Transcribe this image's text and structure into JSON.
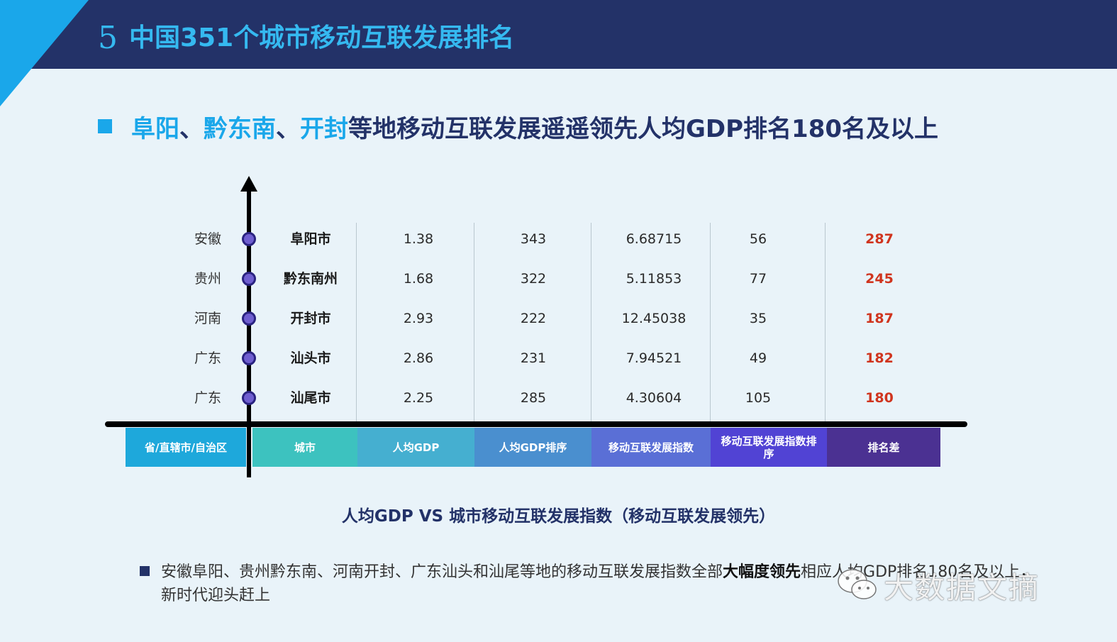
{
  "header": {
    "number": "5",
    "title": "中国351个城市移动互联发展排名"
  },
  "subtitle": {
    "highlights": [
      "阜阳",
      "黔东南",
      "开封"
    ],
    "separators": [
      "、",
      "、"
    ],
    "rest": "等地移动互联发展遥遥领先人均GDP排名180名及以上"
  },
  "table": {
    "columns": [
      "省/直辖市/自治区",
      "城市",
      "人均GDP",
      "人均GDP排序",
      "移动互联发展指数",
      "移动互联发展指数排序",
      "排名差"
    ],
    "rows": [
      {
        "province": "安徽",
        "city": "阜阳市",
        "gdp": "1.38",
        "gdp_rank": "343",
        "index": "6.68715",
        "index_rank": "56",
        "diff": "287"
      },
      {
        "province": "贵州",
        "city": "黔东南州",
        "gdp": "1.68",
        "gdp_rank": "322",
        "index": "5.11853",
        "index_rank": "77",
        "diff": "245"
      },
      {
        "province": "河南",
        "city": "开封市",
        "gdp": "2.93",
        "gdp_rank": "222",
        "index": "12.45038",
        "index_rank": "35",
        "diff": "187"
      },
      {
        "province": "广东",
        "city": "汕头市",
        "gdp": "2.86",
        "gdp_rank": "231",
        "index": "7.94521",
        "index_rank": "49",
        "diff": "182"
      },
      {
        "province": "广东",
        "city": "汕尾市",
        "gdp": "2.25",
        "gdp_rank": "285",
        "index": "4.30604",
        "index_rank": "105",
        "diff": "180"
      }
    ],
    "header_colors": [
      "#1ea8db",
      "#3dc2bf",
      "#45afd0",
      "#4a8fcf",
      "#5a6fd6",
      "#5143d4",
      "#4b3192"
    ],
    "diff_color": "#d0341e"
  },
  "caption": "人均GDP VS 城市移动互联发展指数（移动互联发展领先）",
  "note": {
    "before_bold": "安徽阜阳、贵州黔东南、河南开封、广东汕头和汕尾等地的移动互联发展指数全部",
    "bold": "大幅度领先",
    "after_bold": "相应人均GDP排名180名及以上，新时代迎头赶上"
  },
  "watermark": {
    "text": "大数据文摘",
    "icon": "wechat-icon"
  },
  "colors": {
    "header_bg": "#233268",
    "accent": "#1aa7ea",
    "title_text": "#35b9f0",
    "page_bg": "#e9f3f9"
  }
}
